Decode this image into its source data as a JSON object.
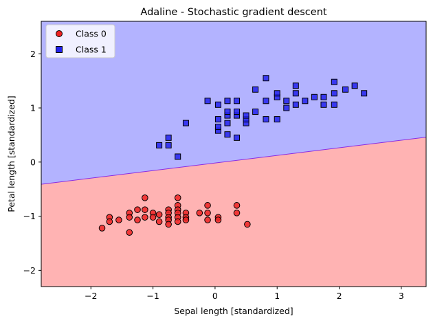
{
  "chart_data": {
    "type": "scatter",
    "title": "Adaline - Stochastic gradient descent",
    "xlabel": "Sepal length [standardized]",
    "ylabel": "Petal length [standardized]",
    "xlim": [
      -2.8,
      3.4
    ],
    "ylim": [
      -2.3,
      2.6
    ],
    "xticks": [
      {
        "value": -2,
        "label": "−2"
      },
      {
        "value": -1,
        "label": "−1"
      },
      {
        "value": 0,
        "label": "0"
      },
      {
        "value": 1,
        "label": "1"
      },
      {
        "value": 2,
        "label": "2"
      },
      {
        "value": 3,
        "label": "3"
      }
    ],
    "yticks": [
      {
        "value": -2,
        "label": "−2"
      },
      {
        "value": -1,
        "label": "−1"
      },
      {
        "value": 0,
        "label": "0"
      },
      {
        "value": 1,
        "label": "1"
      },
      {
        "value": 2,
        "label": "2"
      }
    ],
    "grid": false,
    "legend_position": "top-left",
    "decision_regions": {
      "boundary": [
        [
          -2.8,
          -0.41
        ],
        [
          3.4,
          0.46
        ]
      ],
      "below_color": "#ffb3b3",
      "above_color": "#b3b3ff",
      "boundary_color": "#8a2be2"
    },
    "series": [
      {
        "name": "Class 0",
        "marker": "circle",
        "color": "#ee2222",
        "points": [
          [
            -1.82,
            -1.22
          ],
          [
            -1.7,
            -1.02
          ],
          [
            -1.7,
            -1.1
          ],
          [
            -1.55,
            -1.07
          ],
          [
            -1.38,
            -0.94
          ],
          [
            -1.38,
            -1.02
          ],
          [
            -1.38,
            -1.3
          ],
          [
            -1.25,
            -0.88
          ],
          [
            -1.25,
            -1.07
          ],
          [
            -1.13,
            -0.66
          ],
          [
            -1.13,
            -0.88
          ],
          [
            -1.13,
            -1.02
          ],
          [
            -1.0,
            -0.94
          ],
          [
            -1.0,
            -1.02
          ],
          [
            -0.9,
            -0.97
          ],
          [
            -0.9,
            -1.1
          ],
          [
            -0.75,
            -0.88
          ],
          [
            -0.75,
            -0.94
          ],
          [
            -0.75,
            -1.02
          ],
          [
            -0.75,
            -1.07
          ],
          [
            -0.75,
            -1.15
          ],
          [
            -0.6,
            -0.66
          ],
          [
            -0.6,
            -0.8
          ],
          [
            -0.6,
            -0.88
          ],
          [
            -0.6,
            -0.94
          ],
          [
            -0.6,
            -1.02
          ],
          [
            -0.6,
            -1.1
          ],
          [
            -0.47,
            -0.94
          ],
          [
            -0.47,
            -1.02
          ],
          [
            -0.47,
            -1.07
          ],
          [
            -0.25,
            -0.94
          ],
          [
            -0.12,
            -0.8
          ],
          [
            -0.12,
            -0.94
          ],
          [
            -0.12,
            -1.07
          ],
          [
            0.05,
            -1.02
          ],
          [
            0.05,
            -1.07
          ],
          [
            0.35,
            -0.8
          ],
          [
            0.35,
            -0.94
          ],
          [
            0.52,
            -1.15
          ]
        ]
      },
      {
        "name": "Class 1",
        "marker": "square",
        "color": "#2222ee",
        "points": [
          [
            -0.9,
            0.31
          ],
          [
            -0.75,
            0.31
          ],
          [
            -0.75,
            0.45
          ],
          [
            -0.6,
            0.1
          ],
          [
            -0.47,
            0.72
          ],
          [
            -0.12,
            1.13
          ],
          [
            0.05,
            0.58
          ],
          [
            0.05,
            0.65
          ],
          [
            0.05,
            0.79
          ],
          [
            0.05,
            1.06
          ],
          [
            0.2,
            0.51
          ],
          [
            0.2,
            0.72
          ],
          [
            0.2,
            0.86
          ],
          [
            0.2,
            0.93
          ],
          [
            0.2,
            1.13
          ],
          [
            0.35,
            0.45
          ],
          [
            0.35,
            0.86
          ],
          [
            0.35,
            0.93
          ],
          [
            0.35,
            1.13
          ],
          [
            0.5,
            0.72
          ],
          [
            0.5,
            0.79
          ],
          [
            0.5,
            0.86
          ],
          [
            0.65,
            0.93
          ],
          [
            0.65,
            1.34
          ],
          [
            0.82,
            0.79
          ],
          [
            0.82,
            1.13
          ],
          [
            0.82,
            1.55
          ],
          [
            1.0,
            0.79
          ],
          [
            1.0,
            1.2
          ],
          [
            1.0,
            1.27
          ],
          [
            1.15,
            1.0
          ],
          [
            1.15,
            1.13
          ],
          [
            1.3,
            1.06
          ],
          [
            1.3,
            1.27
          ],
          [
            1.3,
            1.41
          ],
          [
            1.45,
            1.13
          ],
          [
            1.6,
            1.2
          ],
          [
            1.75,
            1.06
          ],
          [
            1.75,
            1.2
          ],
          [
            1.92,
            1.06
          ],
          [
            1.92,
            1.27
          ],
          [
            1.92,
            1.48
          ],
          [
            2.1,
            1.34
          ],
          [
            2.25,
            1.41
          ],
          [
            2.4,
            1.27
          ]
        ]
      }
    ]
  }
}
